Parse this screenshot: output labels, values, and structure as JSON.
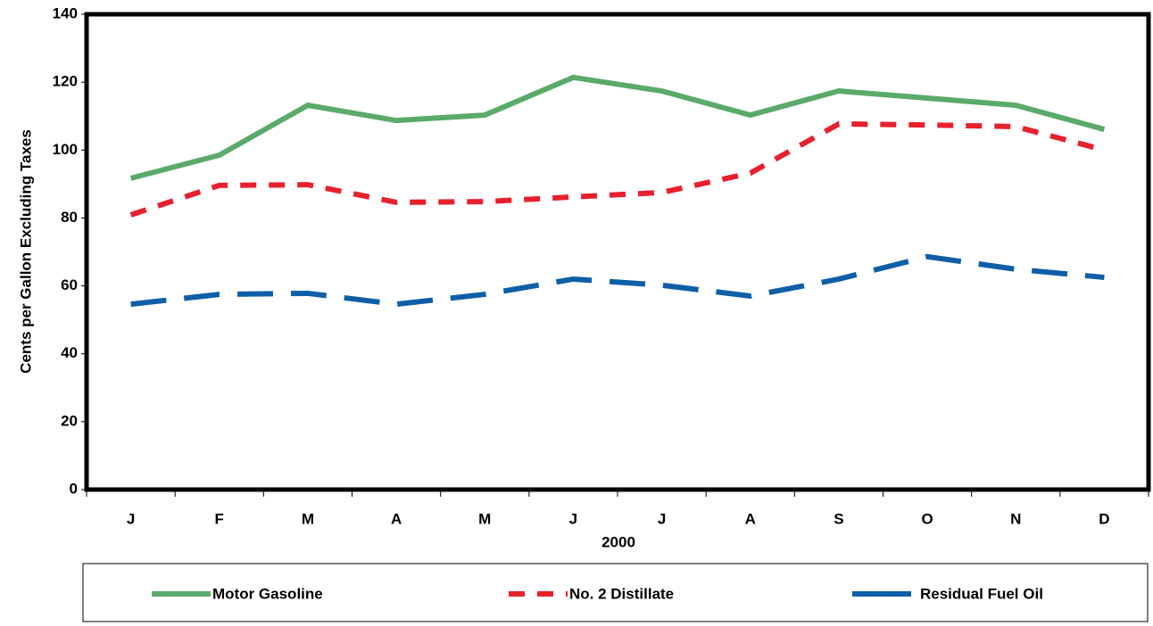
{
  "chart_data": {
    "type": "line",
    "x_label": "2000",
    "y_label": "Cents per Gallon Excluding Taxes",
    "categories": [
      "J",
      "F",
      "M",
      "A",
      "M",
      "J",
      "J",
      "A",
      "S",
      "O",
      "N",
      "D"
    ],
    "series": [
      {
        "name": "Motor Gasoline",
        "color": "#5aaa6a",
        "dash": "solid",
        "values": [
          91.7,
          98.5,
          113.2,
          108.7,
          110.3,
          121.4,
          117.4,
          110.3,
          117.4,
          115.3,
          113.2,
          106.1
        ]
      },
      {
        "name": "No. 2 Distillate",
        "color": "#e8202e",
        "dash": "short",
        "values": [
          80.9,
          89.6,
          89.8,
          84.6,
          84.8,
          86.2,
          87.5,
          93.2,
          107.7,
          107.4,
          106.9,
          100
        ]
      },
      {
        "name": "Residual Fuel Oil",
        "color": "#0f5fa8",
        "dash": "long",
        "values": [
          54.6,
          57.5,
          57.8,
          54.6,
          57.5,
          62,
          60.2,
          57,
          62,
          68.6,
          64.9,
          62.5
        ]
      }
    ],
    "ylim": [
      0,
      140
    ],
    "yticks": [
      0,
      20,
      40,
      60,
      80,
      100,
      120,
      140
    ],
    "legend": "bottom"
  }
}
